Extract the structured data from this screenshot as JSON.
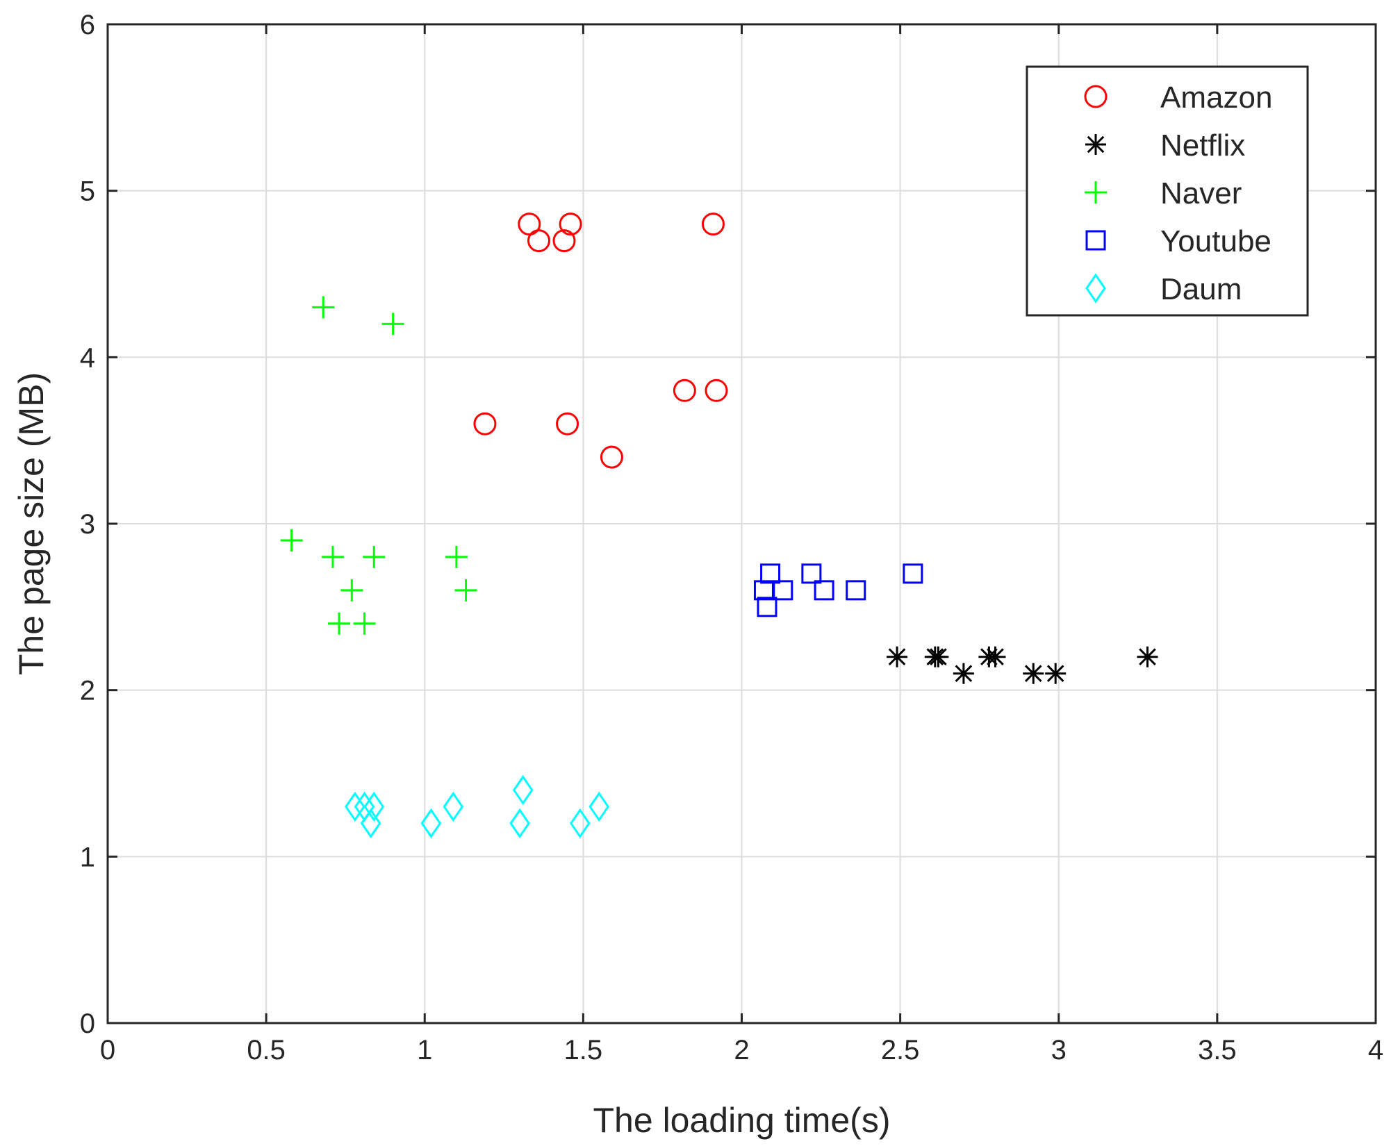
{
  "chart_data": {
    "type": "scatter",
    "title": "",
    "xlabel": "The loading time(s)",
    "ylabel": "The page size (MB)",
    "xlim": [
      0,
      4
    ],
    "ylim": [
      0,
      6
    ],
    "xticks": [
      0,
      0.5,
      1,
      1.5,
      2,
      2.5,
      3,
      3.5,
      4
    ],
    "xtick_labels": [
      "0",
      "0.5",
      "1",
      "1.5",
      "2",
      "2.5",
      "3",
      "3.5",
      "4"
    ],
    "yticks": [
      0,
      1,
      2,
      3,
      4,
      5,
      6
    ],
    "ytick_labels": [
      "0",
      "1",
      "2",
      "3",
      "4",
      "5",
      "6"
    ],
    "grid": true,
    "legend_position": "top-right",
    "series": [
      {
        "name": "Amazon",
        "marker": "circle",
        "color": "#ff0000",
        "points": [
          [
            1.33,
            4.8
          ],
          [
            1.46,
            4.8
          ],
          [
            1.91,
            4.8
          ],
          [
            1.36,
            4.7
          ],
          [
            1.44,
            4.7
          ],
          [
            1.82,
            3.8
          ],
          [
            1.92,
            3.8
          ],
          [
            1.19,
            3.6
          ],
          [
            1.45,
            3.6
          ],
          [
            1.59,
            3.4
          ]
        ]
      },
      {
        "name": "Netflix",
        "marker": "asterisk",
        "color": "#000000",
        "points": [
          [
            2.49,
            2.2
          ],
          [
            2.61,
            2.2
          ],
          [
            2.62,
            2.2
          ],
          [
            2.78,
            2.2
          ],
          [
            2.8,
            2.2
          ],
          [
            3.28,
            2.2
          ],
          [
            2.7,
            2.1
          ],
          [
            2.92,
            2.1
          ],
          [
            2.99,
            2.1
          ]
        ]
      },
      {
        "name": "Naver",
        "marker": "plus",
        "color": "#00ff00",
        "points": [
          [
            0.68,
            4.3
          ],
          [
            0.9,
            4.2
          ],
          [
            0.58,
            2.9
          ],
          [
            0.71,
            2.8
          ],
          [
            0.84,
            2.8
          ],
          [
            1.1,
            2.8
          ],
          [
            0.77,
            2.6
          ],
          [
            1.13,
            2.6
          ],
          [
            0.73,
            2.4
          ],
          [
            0.81,
            2.4
          ]
        ]
      },
      {
        "name": "Youtube",
        "marker": "square",
        "color": "#0000ff",
        "points": [
          [
            2.09,
            2.7
          ],
          [
            2.22,
            2.7
          ],
          [
            2.54,
            2.7
          ],
          [
            2.07,
            2.6
          ],
          [
            2.13,
            2.6
          ],
          [
            2.26,
            2.6
          ],
          [
            2.36,
            2.6
          ],
          [
            2.08,
            2.5
          ]
        ]
      },
      {
        "name": "Daum",
        "marker": "diamond",
        "color": "#00ffff",
        "points": [
          [
            1.31,
            1.4
          ],
          [
            0.78,
            1.3
          ],
          [
            0.81,
            1.3
          ],
          [
            0.84,
            1.3
          ],
          [
            1.09,
            1.3
          ],
          [
            1.55,
            1.3
          ],
          [
            0.83,
            1.2
          ],
          [
            1.02,
            1.2
          ],
          [
            1.3,
            1.2
          ],
          [
            1.49,
            1.2
          ]
        ]
      }
    ]
  }
}
